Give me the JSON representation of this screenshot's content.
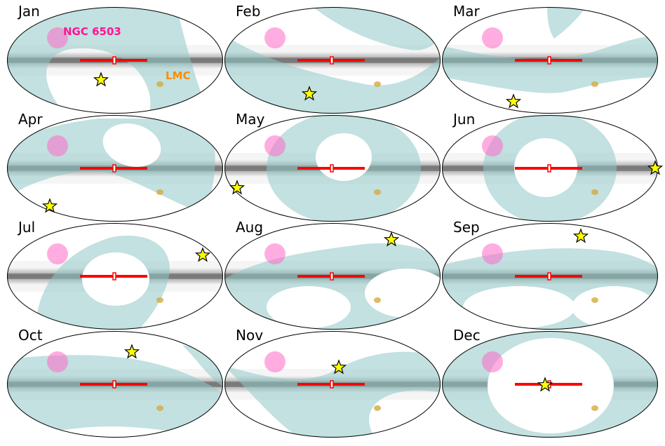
{
  "colors": {
    "visible_region": "#8fc9c6",
    "galactic_plane": "#ff0000",
    "ngc_circle": "#ff69c8",
    "sun_star": "#ffff00",
    "ngc_label": "#ff1493",
    "lmc_label": "#ff8c00",
    "lmc_blob": "#d4aa40"
  },
  "icons": {
    "sun": "star-icon",
    "ngc": "circle",
    "lmc": "blob"
  },
  "labels": {
    "ngc": "NGC 6503",
    "lmc": "LMC"
  },
  "panels": [
    {
      "month": "Jan"
    },
    {
      "month": "Feb"
    },
    {
      "month": "Mar"
    },
    {
      "month": "Apr"
    },
    {
      "month": "May"
    },
    {
      "month": "Jun"
    },
    {
      "month": "Jul"
    },
    {
      "month": "Aug"
    },
    {
      "month": "Sep"
    },
    {
      "month": "Oct"
    },
    {
      "month": "Nov"
    },
    {
      "month": "Dec"
    }
  ]
}
